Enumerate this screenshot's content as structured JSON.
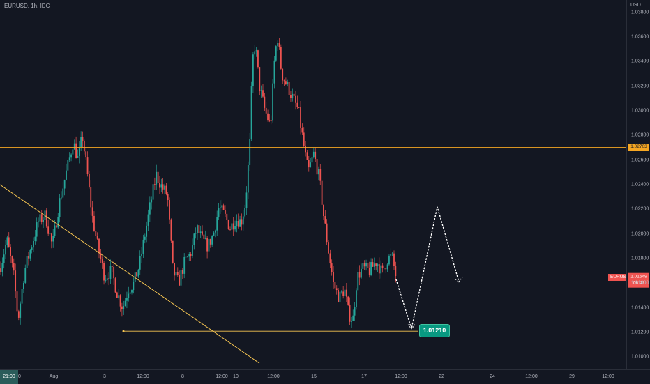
{
  "header": {
    "symbol_title": "EURUSD, 1h, IDC"
  },
  "price_axis": {
    "currency": "USD",
    "ticks": [
      "1.03800",
      "1.03600",
      "1.03400",
      "1.03200",
      "1.03000",
      "1.02800",
      "1.02600",
      "1.02400",
      "1.02200",
      "1.02000",
      "1.01800",
      "1.01600",
      "1.01400",
      "1.01200",
      "1.01000"
    ],
    "ylim": [
      1.009,
      1.039
    ]
  },
  "horizontal_line": {
    "price": 1.02703,
    "label": "1.02703",
    "color": "#f5a623"
  },
  "current_price": {
    "symbol_label": "EURUSD",
    "price": 1.01649,
    "label": "1.01649",
    "countdown": "06:47",
    "color": "#ef5350"
  },
  "support": {
    "price": 1.0121,
    "label": "1.01210",
    "color": "#089981"
  },
  "time_axis": {
    "crosshair_label": "21:00",
    "ticks": [
      "0",
      "Aug",
      "3",
      "12:00",
      "8",
      "12:00",
      "10",
      "12:00",
      "15",
      "17",
      "12:00",
      "22",
      "24",
      "12:00",
      "29",
      "12:00"
    ]
  },
  "colors": {
    "background": "#131722",
    "up": "#26a69a",
    "down": "#ef5350",
    "trendline": "#f5c451"
  }
}
